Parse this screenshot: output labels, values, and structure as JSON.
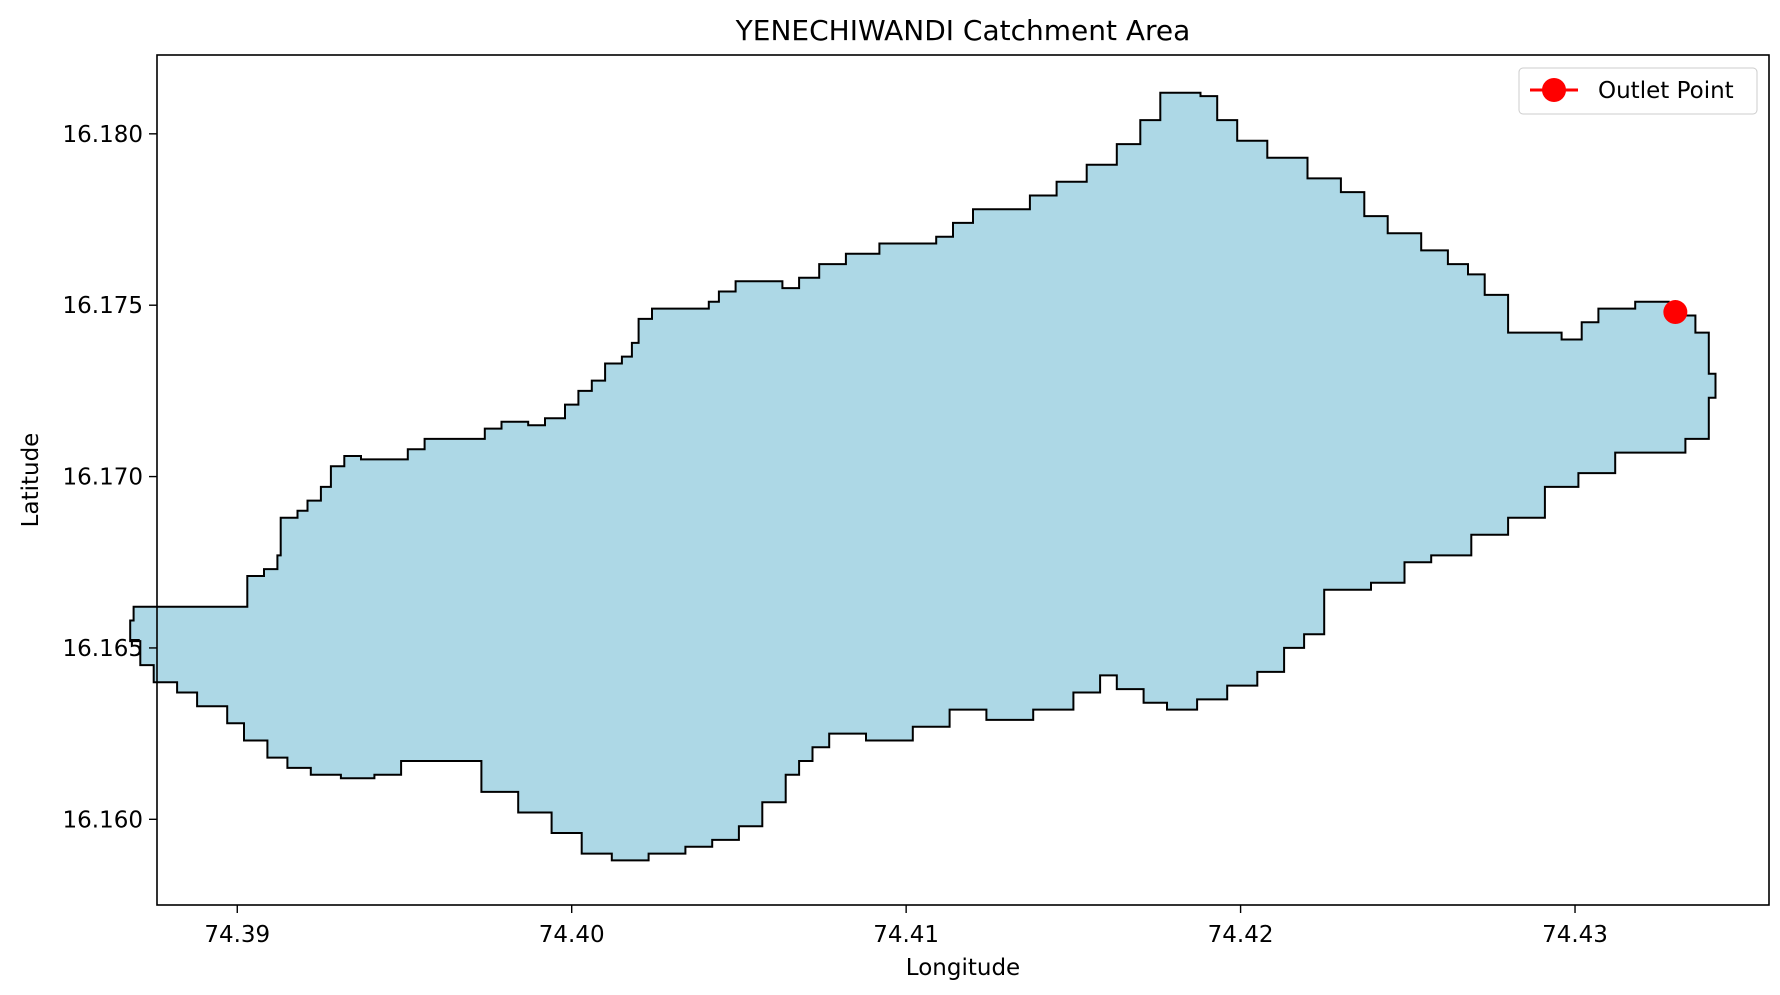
{
  "chart_data": {
    "type": "map",
    "title": "YENECHIWANDI Catchment Area",
    "xlabel": "Longitude",
    "ylabel": "Latitude",
    "xlim": [
      74.3876,
      74.4358
    ],
    "ylim": [
      16.1575,
      16.1823
    ],
    "x_ticks": [
      74.39,
      74.4,
      74.41,
      74.42,
      74.43
    ],
    "x_tick_labels": [
      "74.39",
      "74.40",
      "74.41",
      "74.42",
      "74.43"
    ],
    "y_ticks": [
      16.16,
      16.165,
      16.17,
      16.175,
      16.18
    ],
    "y_tick_labels": [
      "16.160",
      "16.165",
      "16.170",
      "16.175",
      "16.180"
    ],
    "grid": false,
    "legend": {
      "placement": "top-right",
      "entries": [
        "Outlet Point"
      ]
    },
    "catchment": {
      "fill": "#add8e6",
      "edge": "#000000",
      "polygon": [
        [
          74.39,
          16.1662
        ],
        [
          74.3903,
          16.1671
        ],
        [
          74.3908,
          16.1673
        ],
        [
          74.3912,
          16.1677
        ],
        [
          74.3913,
          16.1688
        ],
        [
          74.3918,
          16.169
        ],
        [
          74.3921,
          16.1693
        ],
        [
          74.3925,
          16.1697
        ],
        [
          74.3928,
          16.1703
        ],
        [
          74.3932,
          16.1706
        ],
        [
          74.3937,
          16.1705
        ],
        [
          74.3948,
          16.1705
        ],
        [
          74.3951,
          16.1708
        ],
        [
          74.3956,
          16.1711
        ],
        [
          74.3971,
          16.1711
        ],
        [
          74.3974,
          16.1714
        ],
        [
          74.3979,
          16.1716
        ],
        [
          74.3987,
          16.1715
        ],
        [
          74.3992,
          16.1717
        ],
        [
          74.3998,
          16.1721
        ],
        [
          74.4002,
          16.1725
        ],
        [
          74.4006,
          16.1728
        ],
        [
          74.401,
          16.1733
        ],
        [
          74.4015,
          16.1735
        ],
        [
          74.4018,
          16.1739
        ],
        [
          74.402,
          16.1746
        ],
        [
          74.4024,
          16.1749
        ],
        [
          74.4037,
          16.1749
        ],
        [
          74.4041,
          16.1751
        ],
        [
          74.4044,
          16.1754
        ],
        [
          74.4049,
          16.1757
        ],
        [
          74.4057,
          16.1757
        ],
        [
          74.4063,
          16.1755
        ],
        [
          74.4068,
          16.1758
        ],
        [
          74.4074,
          16.1762
        ],
        [
          74.4082,
          16.1765
        ],
        [
          74.4092,
          16.1768
        ],
        [
          74.4109,
          16.177
        ],
        [
          74.4114,
          16.1774
        ],
        [
          74.412,
          16.1778
        ],
        [
          74.4137,
          16.1782
        ],
        [
          74.4145,
          16.1786
        ],
        [
          74.4154,
          16.1791
        ],
        [
          74.4163,
          16.1797
        ],
        [
          74.417,
          16.1804
        ],
        [
          74.4176,
          16.1812
        ],
        [
          74.4188,
          16.1811
        ],
        [
          74.4193,
          16.1804
        ],
        [
          74.4199,
          16.1798
        ],
        [
          74.4208,
          16.1793
        ],
        [
          74.422,
          16.1787
        ],
        [
          74.423,
          16.1783
        ],
        [
          74.4237,
          16.1776
        ],
        [
          74.4244,
          16.1771
        ],
        [
          74.4254,
          16.1766
        ],
        [
          74.4262,
          16.1762
        ],
        [
          74.4268,
          16.1759
        ],
        [
          74.4273,
          16.1753
        ],
        [
          74.428,
          16.1742
        ],
        [
          74.4296,
          16.174
        ],
        [
          74.4302,
          16.1745
        ],
        [
          74.4307,
          16.1749
        ],
        [
          74.4318,
          16.1751
        ],
        [
          74.4328,
          16.1749
        ],
        [
          74.4332,
          16.1747
        ],
        [
          74.4336,
          16.1742
        ],
        [
          74.434,
          16.173
        ],
        [
          74.4342,
          16.1723
        ],
        [
          74.434,
          16.1711
        ],
        [
          74.4333,
          16.1707
        ],
        [
          74.4317,
          16.1707
        ],
        [
          74.4312,
          16.1701
        ],
        [
          74.4301,
          16.1697
        ],
        [
          74.4291,
          16.1688
        ],
        [
          74.428,
          16.1683
        ],
        [
          74.4269,
          16.1677
        ],
        [
          74.4257,
          16.1675
        ],
        [
          74.4249,
          16.1669
        ],
        [
          74.4239,
          16.1667
        ],
        [
          74.4227,
          16.1667
        ],
        [
          74.4225,
          16.1654
        ],
        [
          74.4219,
          16.165
        ],
        [
          74.4213,
          16.1643
        ],
        [
          74.4205,
          16.1639
        ],
        [
          74.4196,
          16.1635
        ],
        [
          74.4187,
          16.1632
        ],
        [
          74.4178,
          16.1634
        ],
        [
          74.4171,
          16.1638
        ],
        [
          74.4163,
          16.1642
        ],
        [
          74.4158,
          16.1637
        ],
        [
          74.415,
          16.1632
        ],
        [
          74.4138,
          16.1629
        ],
        [
          74.4124,
          16.1632
        ],
        [
          74.4113,
          16.1627
        ],
        [
          74.4102,
          16.1623
        ],
        [
          74.4088,
          16.1625
        ],
        [
          74.4077,
          16.1621
        ],
        [
          74.4072,
          16.1617
        ],
        [
          74.4068,
          16.1613
        ],
        [
          74.4064,
          16.1605
        ],
        [
          74.4057,
          16.1598
        ],
        [
          74.405,
          16.1594
        ],
        [
          74.4042,
          16.1592
        ],
        [
          74.4034,
          16.159
        ],
        [
          74.4023,
          16.1588
        ],
        [
          74.4012,
          16.159
        ],
        [
          74.4003,
          16.1596
        ],
        [
          74.3994,
          16.1602
        ],
        [
          74.3984,
          16.1608
        ],
        [
          74.3973,
          16.1617
        ],
        [
          74.3966,
          16.1617
        ],
        [
          74.3956,
          16.1617
        ],
        [
          74.3949,
          16.1613
        ],
        [
          74.3941,
          16.1612
        ],
        [
          74.3931,
          16.1613
        ],
        [
          74.3922,
          16.1615
        ],
        [
          74.3915,
          16.1618
        ],
        [
          74.3909,
          16.1623
        ],
        [
          74.3902,
          16.1628
        ],
        [
          74.3897,
          16.1633
        ],
        [
          74.3888,
          16.1637
        ],
        [
          74.3882,
          16.164
        ],
        [
          74.3875,
          16.1645
        ],
        [
          74.3871,
          16.1652
        ],
        [
          74.3868,
          16.1658
        ],
        [
          74.3869,
          16.1662
        ],
        [
          74.39,
          16.1662
        ]
      ]
    },
    "outlet": {
      "label": "Outlet Point",
      "lon": 74.433,
      "lat": 16.1748,
      "color": "#ff0000"
    }
  }
}
